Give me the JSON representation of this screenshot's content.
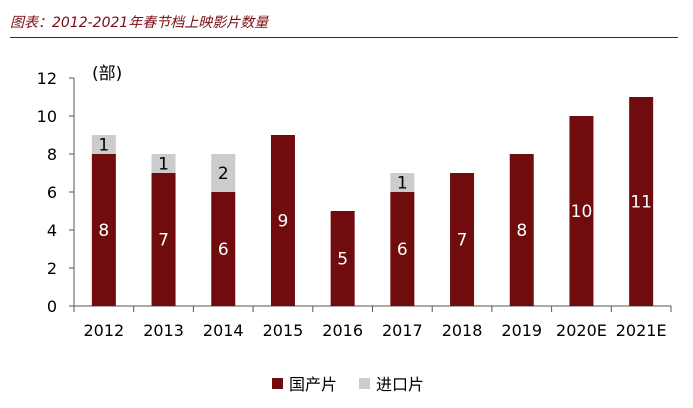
{
  "header": {
    "title": "图表：2012-2021年春节档上映影片数量"
  },
  "chart_data": {
    "type": "bar",
    "stacked": true,
    "unit_label": "(部)",
    "categories": [
      "2012",
      "2013",
      "2014",
      "2015",
      "2016",
      "2017",
      "2018",
      "2019",
      "2020E",
      "2021E"
    ],
    "series": [
      {
        "name": "国产片",
        "color": "#700b0e",
        "label_color": "#ffffff",
        "values": [
          8,
          7,
          6,
          9,
          5,
          6,
          7,
          8,
          10,
          11
        ]
      },
      {
        "name": "进口片",
        "color": "#cccccc",
        "label_color": "#000000",
        "values": [
          1,
          1,
          2,
          0,
          0,
          1,
          0,
          0,
          0,
          0
        ]
      }
    ],
    "yticks": [
      0,
      2,
      4,
      6,
      8,
      10,
      12
    ],
    "ylim": [
      0,
      12
    ],
    "grid": false,
    "legend_position": "bottom"
  }
}
